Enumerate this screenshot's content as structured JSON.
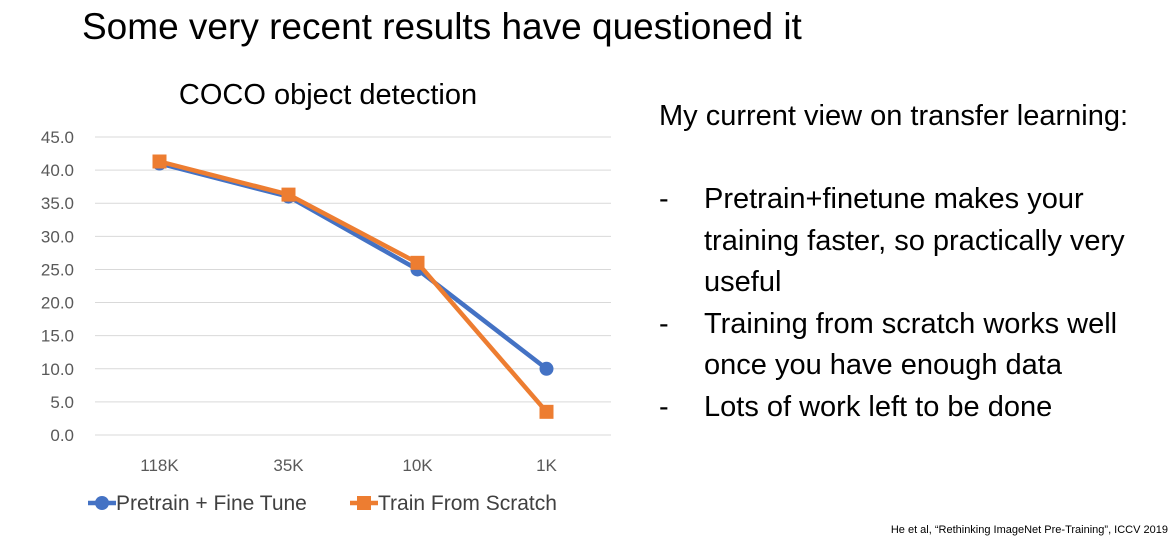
{
  "slide": {
    "title": "Some very recent results have questioned it",
    "notes_intro": "My current view on transfer learning:",
    "bullets": [
      {
        "dash": "-",
        "text": "Pretrain+finetune makes your training faster, so practically very useful"
      },
      {
        "dash": "-",
        "text": "Training from scratch works well once you have enough data"
      },
      {
        "dash": "-",
        "text": "Lots of work left to be done"
      }
    ],
    "citation": "He et al, “Rethinking ImageNet Pre-Training”, ICCV 2019"
  },
  "chart_data": {
    "type": "line",
    "title": "COCO object detection",
    "categories": [
      "118K",
      "35K",
      "10K",
      "1K"
    ],
    "ylim": [
      0,
      45
    ],
    "yticks": [
      "0.0",
      "5.0",
      "10.0",
      "15.0",
      "20.0",
      "25.0",
      "30.0",
      "35.0",
      "40.0",
      "45.0"
    ],
    "grid": true,
    "legend": "bottom",
    "series": [
      {
        "name": "Pretrain + Fine Tune",
        "values": [
          41.0,
          36.0,
          25.0,
          10.0
        ],
        "color": "#4472C4",
        "marker": "circle"
      },
      {
        "name": "Train From Scratch",
        "values": [
          41.3,
          36.3,
          26.0,
          3.5
        ],
        "color": "#ED7D31",
        "marker": "square"
      }
    ]
  }
}
